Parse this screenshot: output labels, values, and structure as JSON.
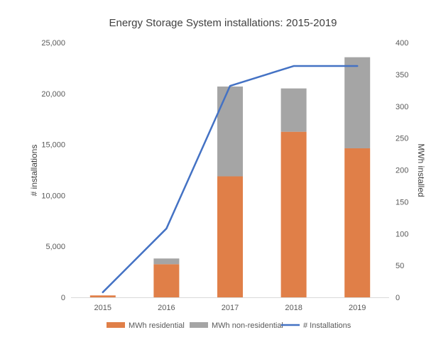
{
  "chart_data": {
    "type": "bar",
    "title": "Energy Storage System installations: 2015-2019",
    "categories": [
      "2015",
      "2016",
      "2017",
      "2018",
      "2019"
    ],
    "series": [
      {
        "name": "MWh residential",
        "kind": "bar",
        "axis": "right",
        "stacked": true,
        "color": "#E07F48",
        "values": [
          3,
          52,
          190,
          260,
          234
        ]
      },
      {
        "name": "MWh non-residential",
        "kind": "bar",
        "axis": "right",
        "stacked": true,
        "color": "#A5A5A5",
        "values": [
          0,
          9,
          141,
          68,
          143
        ]
      },
      {
        "name": "# Installations",
        "kind": "line",
        "axis": "left",
        "color": "#4472C4",
        "values": [
          500,
          6750,
          20750,
          22700,
          22700
        ]
      }
    ],
    "y_left": {
      "label": "# installations",
      "range": [
        0,
        25000
      ],
      "ticks": [
        "0",
        "5,000",
        "10,000",
        "15,000",
        "20,000",
        "25,000"
      ],
      "tick_values": [
        0,
        5000,
        10000,
        15000,
        20000,
        25000
      ]
    },
    "y_right": {
      "label": "MWh installed",
      "range": [
        0,
        400
      ],
      "ticks": [
        "0",
        "50",
        "100",
        "150",
        "200",
        "250",
        "300",
        "350",
        "400"
      ],
      "tick_values": [
        0,
        50,
        100,
        150,
        200,
        250,
        300,
        350,
        400
      ]
    },
    "xlabel": "",
    "grid": false,
    "legend_position": "bottom"
  }
}
